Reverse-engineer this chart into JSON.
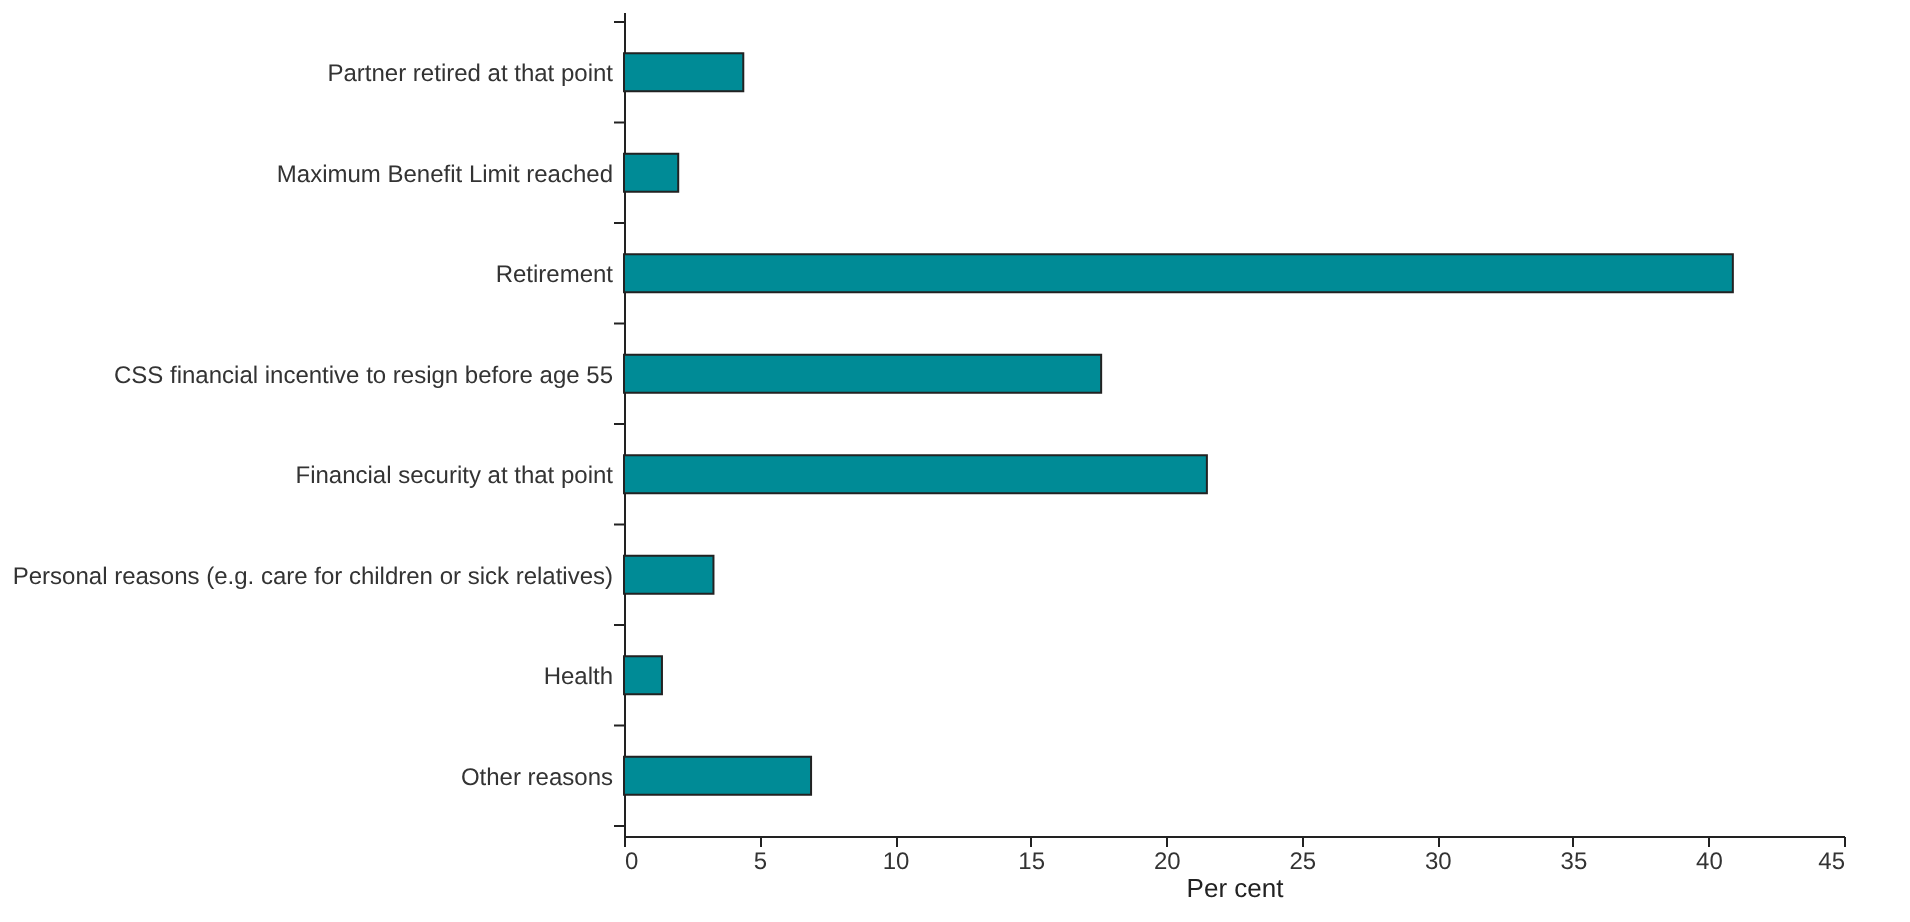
{
  "chart_data": {
    "type": "bar",
    "orientation": "horizontal",
    "xlabel": "Per cent",
    "categories": [
      "Partner retired at that point",
      "Maximum Benefit Limit reached",
      "Retirement",
      "CSS financial incentive to resign before age 55",
      "Financial security at that point",
      "Personal reasons (e.g. care for children or sick relatives)",
      "Health",
      "Other reasons"
    ],
    "values": [
      4.4,
      2.0,
      40.9,
      17.6,
      21.5,
      3.3,
      1.4,
      6.9
    ],
    "color": "#008b96",
    "xlim": [
      0,
      45
    ],
    "xticks": [
      0,
      5,
      10,
      15,
      20,
      25,
      30,
      35,
      40,
      45
    ],
    "grid": false
  }
}
